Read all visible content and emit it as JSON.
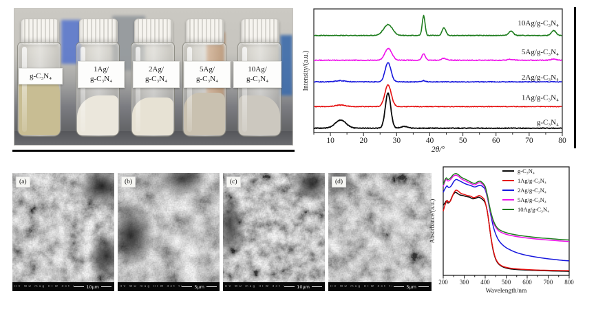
{
  "figure": {
    "photo": {
      "vials": [
        {
          "line1": "g-C₃N₄",
          "line2": ""
        },
        {
          "line1": "1Ag/",
          "line2": "g-C₃N₄"
        },
        {
          "line1": "2Ag/",
          "line2": "g-C₃N₄"
        },
        {
          "line1": "5Ag/",
          "line2": "g-C₃N₄"
        },
        {
          "line1": "10Ag/",
          "line2": "g-C₃N₄"
        }
      ]
    },
    "sem": {
      "meta_columns": "HV  WD  mag  HFW  det  tilt  mode",
      "panels": [
        {
          "tag": "(a)",
          "scale_label": "10μm"
        },
        {
          "tag": "(b)",
          "scale_label": "5μm"
        },
        {
          "tag": "(c)",
          "scale_label": "10μm"
        },
        {
          "tag": "(d)",
          "scale_label": "5μm"
        }
      ]
    }
  },
  "chart_data": {
    "xrd": {
      "type": "line",
      "title": "",
      "xlabel": "2θ/°",
      "ylabel": "Intensity/(a.u.)",
      "xlim": [
        5,
        80
      ],
      "xticks": [
        10,
        20,
        30,
        40,
        50,
        60,
        70,
        80
      ],
      "grid": false,
      "legend_position": "labels-right-of-each-curve",
      "series": [
        {
          "label": "g-C₃N₄",
          "color": "#0b0b0b",
          "baseline_offset": 0.035,
          "label_y": 0.085,
          "peaks": [
            {
              "center": 13.1,
              "height": 0.065,
              "width": 2.3
            },
            {
              "center": 27.4,
              "height": 0.285,
              "width": 1.15
            },
            {
              "center": 32.3,
              "height": 0.014,
              "width": 1.5
            }
          ]
        },
        {
          "label": "1Ag/g-C₃N₄",
          "color": "#e51010",
          "baseline_offset": 0.21,
          "label_y": 0.285,
          "peaks": [
            {
              "center": 13.1,
              "height": 0.012,
              "width": 2.2
            },
            {
              "center": 27.4,
              "height": 0.175,
              "width": 1.35
            }
          ]
        },
        {
          "label": "2Ag/g-C₃N₄",
          "color": "#1717dd",
          "baseline_offset": 0.41,
          "label_y": 0.45,
          "peaks": [
            {
              "center": 13.1,
              "height": 0.01,
              "width": 2.2
            },
            {
              "center": 27.4,
              "height": 0.155,
              "width": 1.25
            },
            {
              "center": 38.15,
              "height": 0.01,
              "width": 0.8
            }
          ]
        },
        {
          "label": "5Ag/g-C₃N₄",
          "color": "#ee10ea",
          "baseline_offset": 0.585,
          "label_y": 0.655,
          "peaks": [
            {
              "center": 27.5,
              "height": 0.095,
              "width": 1.5
            },
            {
              "center": 38.15,
              "height": 0.052,
              "width": 0.75
            },
            {
              "center": 44.3,
              "height": 0.016,
              "width": 1.0
            },
            {
              "center": 64.5,
              "height": 0.007,
              "width": 1.2
            },
            {
              "center": 77.4,
              "height": 0.009,
              "width": 1.2
            }
          ]
        },
        {
          "label": "10Ag/g-C₃N₄",
          "color": "#1e7d1e",
          "baseline_offset": 0.785,
          "label_y": 0.89,
          "peaks": [
            {
              "center": 27.4,
              "height": 0.088,
              "width": 1.9
            },
            {
              "center": 38.15,
              "height": 0.16,
              "width": 0.6
            },
            {
              "center": 44.3,
              "height": 0.062,
              "width": 0.8
            },
            {
              "center": 64.5,
              "height": 0.035,
              "width": 1.0
            },
            {
              "center": 77.4,
              "height": 0.04,
              "width": 1.0
            }
          ]
        }
      ]
    },
    "uvvis": {
      "type": "line",
      "title": "",
      "xlabel": "Wavelength/nm",
      "ylabel": "Absorbance/(a.u.)",
      "xlim": [
        200,
        800
      ],
      "xticks": [
        200,
        300,
        400,
        500,
        600,
        700,
        800
      ],
      "grid": false,
      "legend_position": "top-right",
      "series": [
        {
          "label": "g-C₃N₄",
          "color": "#0b0b0b",
          "points": [
            [
              200,
              0.655
            ],
            [
              208,
              0.675
            ],
            [
              215,
              0.695
            ],
            [
              222,
              0.675
            ],
            [
              232,
              0.69
            ],
            [
              245,
              0.745
            ],
            [
              258,
              0.775
            ],
            [
              268,
              0.765
            ],
            [
              280,
              0.75
            ],
            [
              295,
              0.745
            ],
            [
              310,
              0.735
            ],
            [
              325,
              0.73
            ],
            [
              340,
              0.715
            ],
            [
              355,
              0.72
            ],
            [
              368,
              0.73
            ],
            [
              380,
              0.72
            ],
            [
              392,
              0.7
            ],
            [
              400,
              0.675
            ],
            [
              408,
              0.62
            ],
            [
              416,
              0.52
            ],
            [
              424,
              0.4
            ],
            [
              432,
              0.295
            ],
            [
              440,
              0.215
            ],
            [
              450,
              0.15
            ],
            [
              460,
              0.115
            ],
            [
              472,
              0.092
            ],
            [
              485,
              0.078
            ],
            [
              500,
              0.068
            ],
            [
              520,
              0.06
            ],
            [
              545,
              0.055
            ],
            [
              575,
              0.051
            ],
            [
              610,
              0.048
            ],
            [
              650,
              0.045
            ],
            [
              700,
              0.042
            ],
            [
              750,
              0.04
            ],
            [
              800,
              0.038
            ]
          ]
        },
        {
          "label": "1Ag/g-C₃N₄",
          "color": "#e51010",
          "points": [
            [
              200,
              0.6
            ],
            [
              206,
              0.64
            ],
            [
              212,
              0.675
            ],
            [
              218,
              0.7
            ],
            [
              226,
              0.685
            ],
            [
              236,
              0.7
            ],
            [
              248,
              0.76
            ],
            [
              260,
              0.795
            ],
            [
              272,
              0.785
            ],
            [
              285,
              0.765
            ],
            [
              300,
              0.755
            ],
            [
              315,
              0.745
            ],
            [
              330,
              0.74
            ],
            [
              345,
              0.725
            ],
            [
              360,
              0.735
            ],
            [
              372,
              0.745
            ],
            [
              385,
              0.73
            ],
            [
              395,
              0.71
            ],
            [
              403,
              0.66
            ],
            [
              412,
              0.57
            ],
            [
              420,
              0.46
            ],
            [
              428,
              0.35
            ],
            [
              436,
              0.26
            ],
            [
              445,
              0.185
            ],
            [
              455,
              0.135
            ],
            [
              467,
              0.105
            ],
            [
              480,
              0.088
            ],
            [
              495,
              0.077
            ],
            [
              515,
              0.068
            ],
            [
              540,
              0.062
            ],
            [
              570,
              0.057
            ],
            [
              610,
              0.053
            ],
            [
              660,
              0.049
            ],
            [
              710,
              0.046
            ],
            [
              800,
              0.043
            ]
          ]
        },
        {
          "label": "2Ag/g-C₃N₄",
          "color": "#1717dd",
          "points": [
            [
              200,
              0.775
            ],
            [
              210,
              0.815
            ],
            [
              218,
              0.835
            ],
            [
              226,
              0.82
            ],
            [
              238,
              0.835
            ],
            [
              250,
              0.875
            ],
            [
              262,
              0.895
            ],
            [
              275,
              0.885
            ],
            [
              290,
              0.87
            ],
            [
              305,
              0.855
            ],
            [
              320,
              0.845
            ],
            [
              335,
              0.835
            ],
            [
              350,
              0.825
            ],
            [
              365,
              0.835
            ],
            [
              378,
              0.84
            ],
            [
              390,
              0.825
            ],
            [
              400,
              0.8
            ],
            [
              410,
              0.73
            ],
            [
              420,
              0.63
            ],
            [
              430,
              0.53
            ],
            [
              440,
              0.445
            ],
            [
              452,
              0.375
            ],
            [
              465,
              0.325
            ],
            [
              480,
              0.29
            ],
            [
              500,
              0.258
            ],
            [
              525,
              0.232
            ],
            [
              550,
              0.212
            ],
            [
              580,
              0.195
            ],
            [
              615,
              0.18
            ],
            [
              650,
              0.168
            ],
            [
              690,
              0.157
            ],
            [
              730,
              0.148
            ],
            [
              770,
              0.14
            ],
            [
              800,
              0.135
            ]
          ]
        },
        {
          "label": "5Ag/g-C₃N₄",
          "color": "#ee10ea",
          "points": [
            [
              200,
              0.83
            ],
            [
              208,
              0.875
            ],
            [
              215,
              0.895
            ],
            [
              223,
              0.88
            ],
            [
              235,
              0.895
            ],
            [
              248,
              0.925
            ],
            [
              260,
              0.935
            ],
            [
              272,
              0.925
            ],
            [
              287,
              0.9
            ],
            [
              302,
              0.885
            ],
            [
              318,
              0.87
            ],
            [
              334,
              0.855
            ],
            [
              350,
              0.845
            ],
            [
              364,
              0.86
            ],
            [
              377,
              0.865
            ],
            [
              390,
              0.845
            ],
            [
              400,
              0.815
            ],
            [
              410,
              0.74
            ],
            [
              420,
              0.64
            ],
            [
              430,
              0.555
            ],
            [
              440,
              0.49
            ],
            [
              452,
              0.443
            ],
            [
              465,
              0.415
            ],
            [
              480,
              0.398
            ],
            [
              500,
              0.383
            ],
            [
              530,
              0.369
            ],
            [
              560,
              0.359
            ],
            [
              600,
              0.349
            ],
            [
              650,
              0.338
            ],
            [
              700,
              0.33
            ],
            [
              750,
              0.322
            ],
            [
              800,
              0.316
            ]
          ]
        },
        {
          "label": "10Ag/g-C₃N₄",
          "color": "#1e7d1e",
          "points": [
            [
              200,
              0.845
            ],
            [
              208,
              0.89
            ],
            [
              215,
              0.91
            ],
            [
              223,
              0.895
            ],
            [
              235,
              0.91
            ],
            [
              248,
              0.94
            ],
            [
              260,
              0.95
            ],
            [
              272,
              0.94
            ],
            [
              287,
              0.915
            ],
            [
              302,
              0.9
            ],
            [
              318,
              0.885
            ],
            [
              334,
              0.868
            ],
            [
              350,
              0.858
            ],
            [
              364,
              0.873
            ],
            [
              377,
              0.878
            ],
            [
              390,
              0.858
            ],
            [
              400,
              0.828
            ],
            [
              410,
              0.752
            ],
            [
              420,
              0.652
            ],
            [
              430,
              0.568
            ],
            [
              440,
              0.505
            ],
            [
              452,
              0.458
            ],
            [
              465,
              0.43
            ],
            [
              480,
              0.413
            ],
            [
              500,
              0.398
            ],
            [
              530,
              0.384
            ],
            [
              560,
              0.374
            ],
            [
              600,
              0.363
            ],
            [
              650,
              0.352
            ],
            [
              700,
              0.344
            ],
            [
              750,
              0.336
            ],
            [
              800,
              0.33
            ]
          ]
        }
      ]
    }
  }
}
